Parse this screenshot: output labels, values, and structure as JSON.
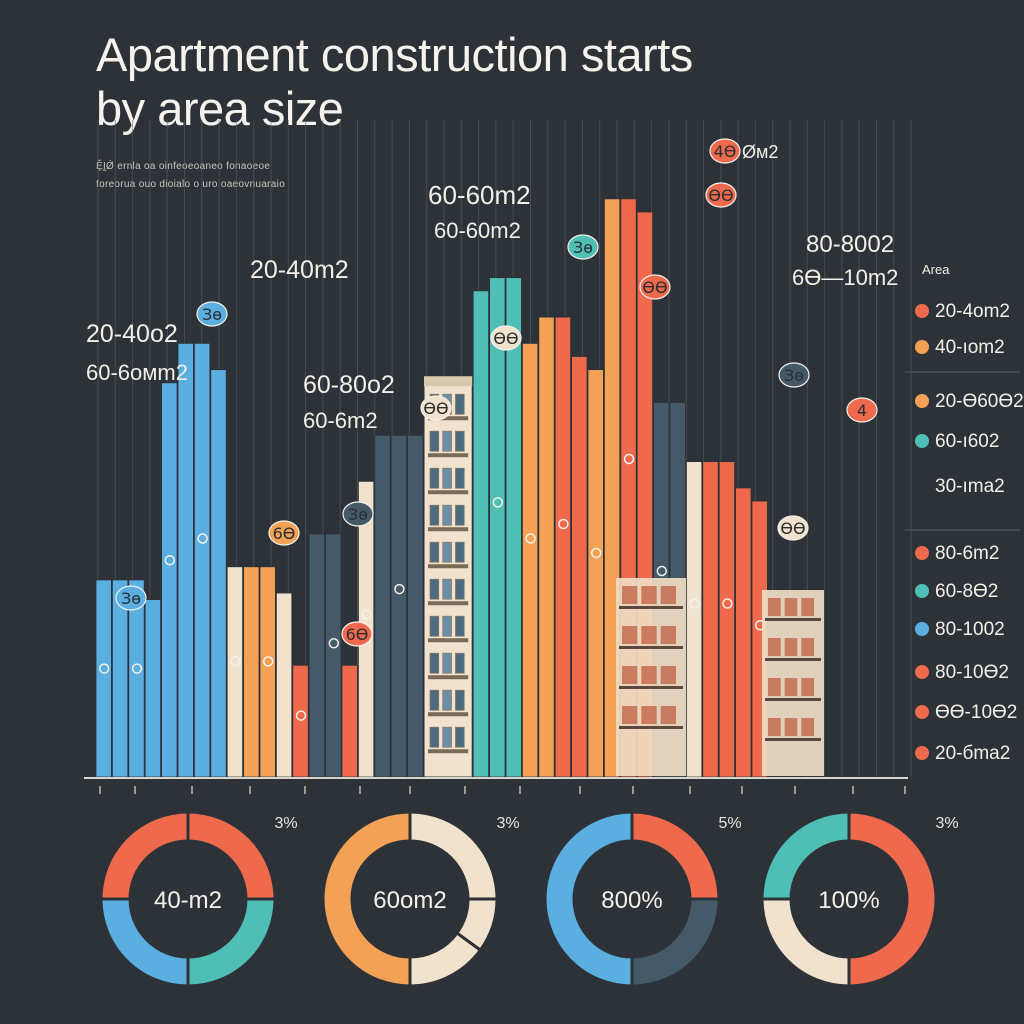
{
  "colors": {
    "background": "#2d3238",
    "blue": "#5aaee0",
    "teal": "#4fbfb6",
    "slate": "#445a68",
    "orange": "#f2a155",
    "coral": "#ef6a4c",
    "cream": "#f0e2cc"
  },
  "chart_data": [
    {
      "type": "bar",
      "title": "Apartment construction starts by area size",
      "title_lines": [
        "Apartment construction starts",
        "by area size"
      ],
      "subtitle_lines": [
        "ḜḬǾ ernla oa oinfeoeoaneo fonaoeoe",
        "foreorua ouo dioialo o uro oaeovnuaraio"
      ],
      "xlabel": "",
      "ylabel": "",
      "ylim": [
        0,
        100
      ],
      "annotations": [
        {
          "text": "20-40о2",
          "at_bar": 0
        },
        {
          "text": "60-6oмm2",
          "at_bar": 0
        },
        {
          "text": "20-40m2",
          "at_bar": 9
        },
        {
          "text": "60-80о2",
          "at_bar": 14
        },
        {
          "text": "60-6m2",
          "at_bar": 14
        },
        {
          "text": "60-60m2",
          "at_bar": 22
        },
        {
          "text": "60-60m2",
          "at_bar": 22
        },
        {
          "text": "80-8002",
          "at_bar": 37
        },
        {
          "text": "6Ө—10m2",
          "at_bar": 37
        },
        {
          "text": "Øм2",
          "at_bar": 33
        }
      ],
      "badges": [
        "Зө",
        "Зө",
        "6Ө",
        "Зө",
        "6Ө",
        "ӨӨ",
        "Зө",
        "ӨӨ",
        "ӨӨ",
        "4Ө",
        "ӨӨ",
        "Зө",
        "ӨӨ",
        "4"
      ],
      "bars": [
        {
          "value": 30,
          "color": "blue"
        },
        {
          "value": 30,
          "color": "blue"
        },
        {
          "value": 30,
          "color": "blue"
        },
        {
          "value": 27,
          "color": "blue"
        },
        {
          "value": 60,
          "color": "blue"
        },
        {
          "value": 66,
          "color": "blue"
        },
        {
          "value": 66,
          "color": "blue"
        },
        {
          "value": 62,
          "color": "blue"
        },
        {
          "value": 32,
          "color": "cream"
        },
        {
          "value": 32,
          "color": "orange"
        },
        {
          "value": 32,
          "color": "orange"
        },
        {
          "value": 28,
          "color": "cream"
        },
        {
          "value": 17,
          "color": "coral"
        },
        {
          "value": 37,
          "color": "slate"
        },
        {
          "value": 37,
          "color": "slate"
        },
        {
          "value": 17,
          "color": "coral"
        },
        {
          "value": 45,
          "color": "cream"
        },
        {
          "value": 52,
          "color": "slate"
        },
        {
          "value": 52,
          "color": "slate"
        },
        {
          "value": 52,
          "color": "slate"
        },
        {
          "value": 61,
          "color": "building"
        },
        {
          "value": 61,
          "color": "building"
        },
        {
          "value": 61,
          "color": "building"
        },
        {
          "value": 74,
          "color": "teal"
        },
        {
          "value": 76,
          "color": "teal"
        },
        {
          "value": 76,
          "color": "teal"
        },
        {
          "value": 66,
          "color": "orange"
        },
        {
          "value": 70,
          "color": "orange"
        },
        {
          "value": 70,
          "color": "coral"
        },
        {
          "value": 64,
          "color": "coral"
        },
        {
          "value": 62,
          "color": "orange"
        },
        {
          "value": 88,
          "color": "orange"
        },
        {
          "value": 88,
          "color": "coral"
        },
        {
          "value": 86,
          "color": "coral"
        },
        {
          "value": 57,
          "color": "slate"
        },
        {
          "value": 57,
          "color": "slate"
        },
        {
          "value": 48,
          "color": "cream"
        },
        {
          "value": 48,
          "color": "coral"
        },
        {
          "value": 48,
          "color": "coral"
        },
        {
          "value": 44,
          "color": "coral"
        },
        {
          "value": 42,
          "color": "coral"
        }
      ],
      "legend": {
        "title": "Area",
        "position": "right",
        "items": [
          {
            "label": "20-4оm2",
            "color": "coral"
          },
          {
            "label": "40-ıоm2",
            "color": "orange"
          },
          {
            "label": "20-Ө60Ө2",
            "color": "orange"
          },
          {
            "label": "60-ı602",
            "color": "teal"
          },
          {
            "label": "30-ıma2",
            "color": "none"
          },
          {
            "label": "80-6m2",
            "color": "coral"
          },
          {
            "label": "60-8Ө2",
            "color": "teal"
          },
          {
            "label": "80-1002",
            "color": "blue"
          },
          {
            "label": "80-10Ө2",
            "color": "coral"
          },
          {
            "label": "ӨӨ-10Ө2",
            "color": "coral"
          },
          {
            "label": "20-бma2",
            "color": "coral"
          }
        ]
      }
    },
    {
      "type": "pie",
      "charts": [
        {
          "center_label": "40-m2",
          "percent_label": "3%",
          "slices": [
            {
              "value": 25,
              "color": "coral"
            },
            {
              "value": 25,
              "color": "teal"
            },
            {
              "value": 25,
              "color": "blue"
            },
            {
              "value": 25,
              "color": "coral"
            }
          ]
        },
        {
          "center_label": "60оm2",
          "percent_label": "3%",
          "slices": [
            {
              "value": 25,
              "color": "cream"
            },
            {
              "value": 10,
              "color": "cream"
            },
            {
              "value": 15,
              "color": "cream"
            },
            {
              "value": 50,
              "color": "orange"
            }
          ]
        },
        {
          "center_label": "800%",
          "percent_label": "5%",
          "slices": [
            {
              "value": 25,
              "color": "coral"
            },
            {
              "value": 25,
              "color": "slate"
            },
            {
              "value": 50,
              "color": "blue"
            }
          ]
        },
        {
          "center_label": "100%",
          "percent_label": "3%",
          "slices": [
            {
              "value": 50,
              "color": "coral"
            },
            {
              "value": 25,
              "color": "cream"
            },
            {
              "value": 25,
              "color": "teal"
            }
          ]
        }
      ]
    }
  ]
}
